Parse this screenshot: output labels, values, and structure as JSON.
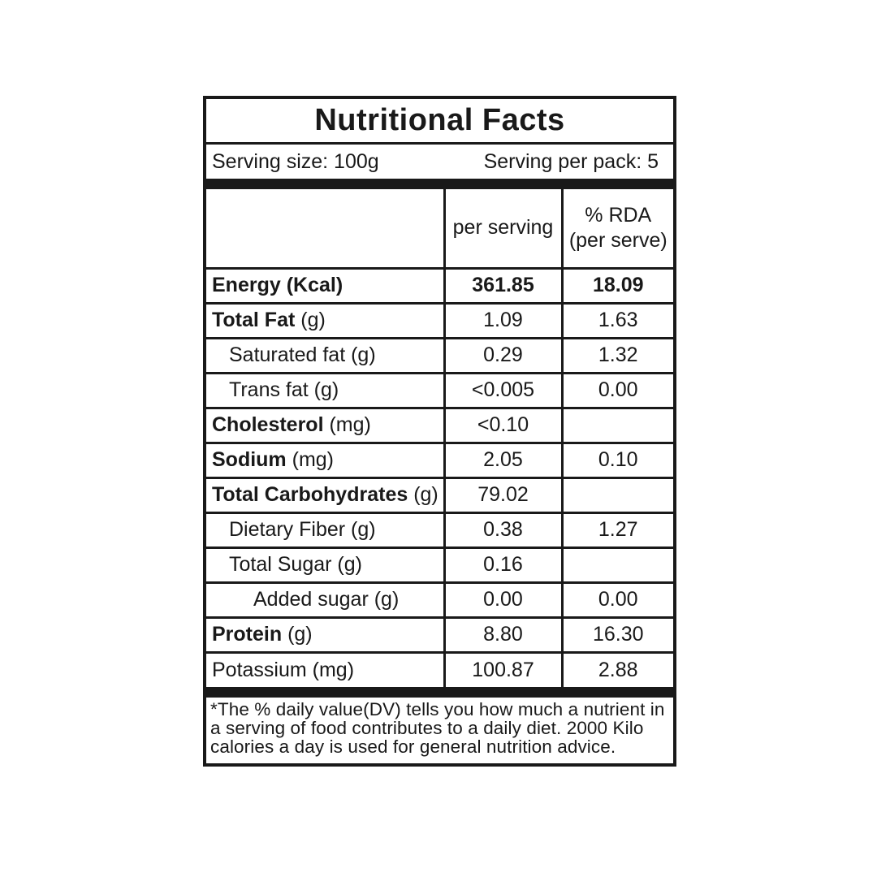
{
  "colors": {
    "ink": "#191919",
    "background": "#ffffff"
  },
  "title": "Nutritional Facts",
  "serving_info": {
    "serving_size": "Serving size: 100g",
    "serving_per_pack": "Serving per pack: 5"
  },
  "table": {
    "headers": {
      "nutrient": "",
      "per_serving": "per serving",
      "rda_line1": "% RDA",
      "rda_line2": "(per serve)"
    },
    "rows": [
      {
        "name": "Energy (Kcal)",
        "unit": "",
        "value": "361.85",
        "rda": "18.09",
        "bold": "all",
        "indent": 0,
        "value_bold": true
      },
      {
        "name": "Total Fat",
        "unit": "(g)",
        "value": "1.09",
        "rda": "1.63",
        "bold": "name",
        "indent": 0,
        "value_bold": false
      },
      {
        "name": "Saturated fat (g)",
        "unit": "",
        "value": "0.29",
        "rda": "1.32",
        "bold": "none",
        "indent": 1,
        "value_bold": false
      },
      {
        "name": "Trans fat (g)",
        "unit": "",
        "value": "<0.005",
        "rda": "0.00",
        "bold": "none",
        "indent": 1,
        "value_bold": false
      },
      {
        "name": "Cholesterol",
        "unit": "(mg)",
        "value": "<0.10",
        "rda": "",
        "bold": "name",
        "indent": 0,
        "value_bold": false
      },
      {
        "name": "Sodium",
        "unit": "(mg)",
        "value": "2.05",
        "rda": "0.10",
        "bold": "name",
        "indent": 0,
        "value_bold": false
      },
      {
        "name": "Total Carbohydrates",
        "unit": "(g)",
        "value": "79.02",
        "rda": "",
        "bold": "name",
        "indent": 0,
        "value_bold": false
      },
      {
        "name": "Dietary Fiber (g)",
        "unit": "",
        "value": "0.38",
        "rda": "1.27",
        "bold": "none",
        "indent": 1,
        "value_bold": false
      },
      {
        "name": "Total Sugar (g)",
        "unit": "",
        "value": "0.16",
        "rda": "",
        "bold": "none",
        "indent": 1,
        "value_bold": false
      },
      {
        "name": "Added sugar (g)",
        "unit": "",
        "value": "0.00",
        "rda": "0.00",
        "bold": "none",
        "indent": 2,
        "value_bold": false
      },
      {
        "name": "Protein",
        "unit": "(g)",
        "value": "8.80",
        "rda": "16.30",
        "bold": "name",
        "indent": 0,
        "value_bold": false
      },
      {
        "name": "Potassium (mg)",
        "unit": "",
        "value": "100.87",
        "rda": "2.88",
        "bold": "none",
        "indent": 0,
        "value_bold": false
      }
    ]
  },
  "footnote": "*The % daily value(DV) tells you how much a nutrient in a serving of food contributes to a daily diet. 2000 Kilo calories a day is used for general nutrition advice."
}
